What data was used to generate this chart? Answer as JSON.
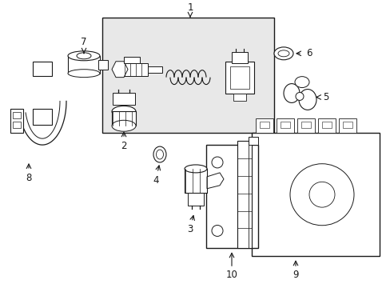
{
  "bg_color": "#ffffff",
  "box_bg": "#e8e8e8",
  "lc": "#1a1a1a",
  "figsize": [
    4.89,
    3.6
  ],
  "dpi": 100
}
